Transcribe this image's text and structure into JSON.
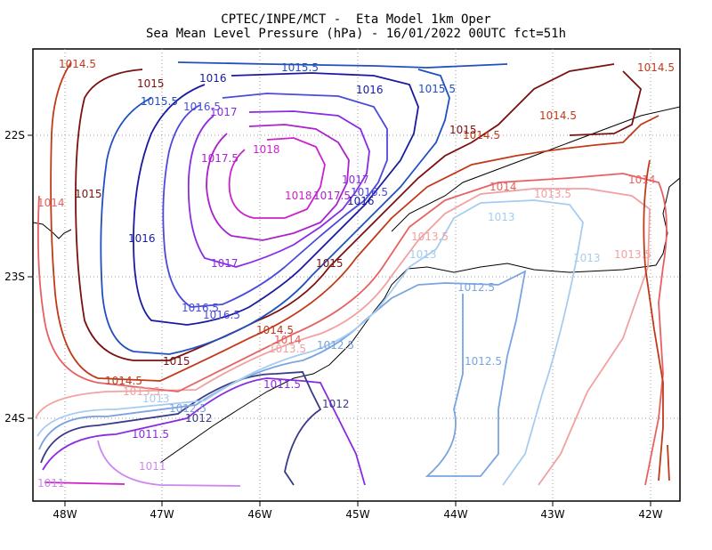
{
  "title": {
    "line1": "CPTEC/INPE/MCT -  Eta Model 1km Oper",
    "line2": "Sea Mean Level Pressure (hPa) - 16/01/2022 00UTC fct=51h"
  },
  "axes": {
    "x_ticks": [
      "48W",
      "47W",
      "46W",
      "45W",
      "44W",
      "43W",
      "42W"
    ],
    "y_ticks": [
      "22S",
      "23S",
      "24S"
    ]
  },
  "isobars": [
    {
      "value": "1011",
      "color": "#cc88ee"
    },
    {
      "value": "1011.5",
      "color": "#8a2be2"
    },
    {
      "value": "1012",
      "color": "#3a3a8a"
    },
    {
      "value": "1012.5",
      "color": "#7aa4e0"
    },
    {
      "value": "1013",
      "color": "#a6ccf0"
    },
    {
      "value": "1013.5",
      "color": "#f2a0a0"
    },
    {
      "value": "1014",
      "color": "#e86060"
    },
    {
      "value": "1014.5",
      "color": "#c03a1a"
    },
    {
      "value": "1015",
      "color": "#7a1010"
    },
    {
      "value": "1015.5",
      "color": "#2050c0"
    },
    {
      "value": "1016",
      "color": "#1a1aa0"
    },
    {
      "value": "1016.5",
      "color": "#4a4adc"
    },
    {
      "value": "1017",
      "color": "#8a2be2"
    },
    {
      "value": "1017.5",
      "color": "#aa22cc"
    },
    {
      "value": "1018",
      "color": "#cc22cc"
    }
  ]
}
